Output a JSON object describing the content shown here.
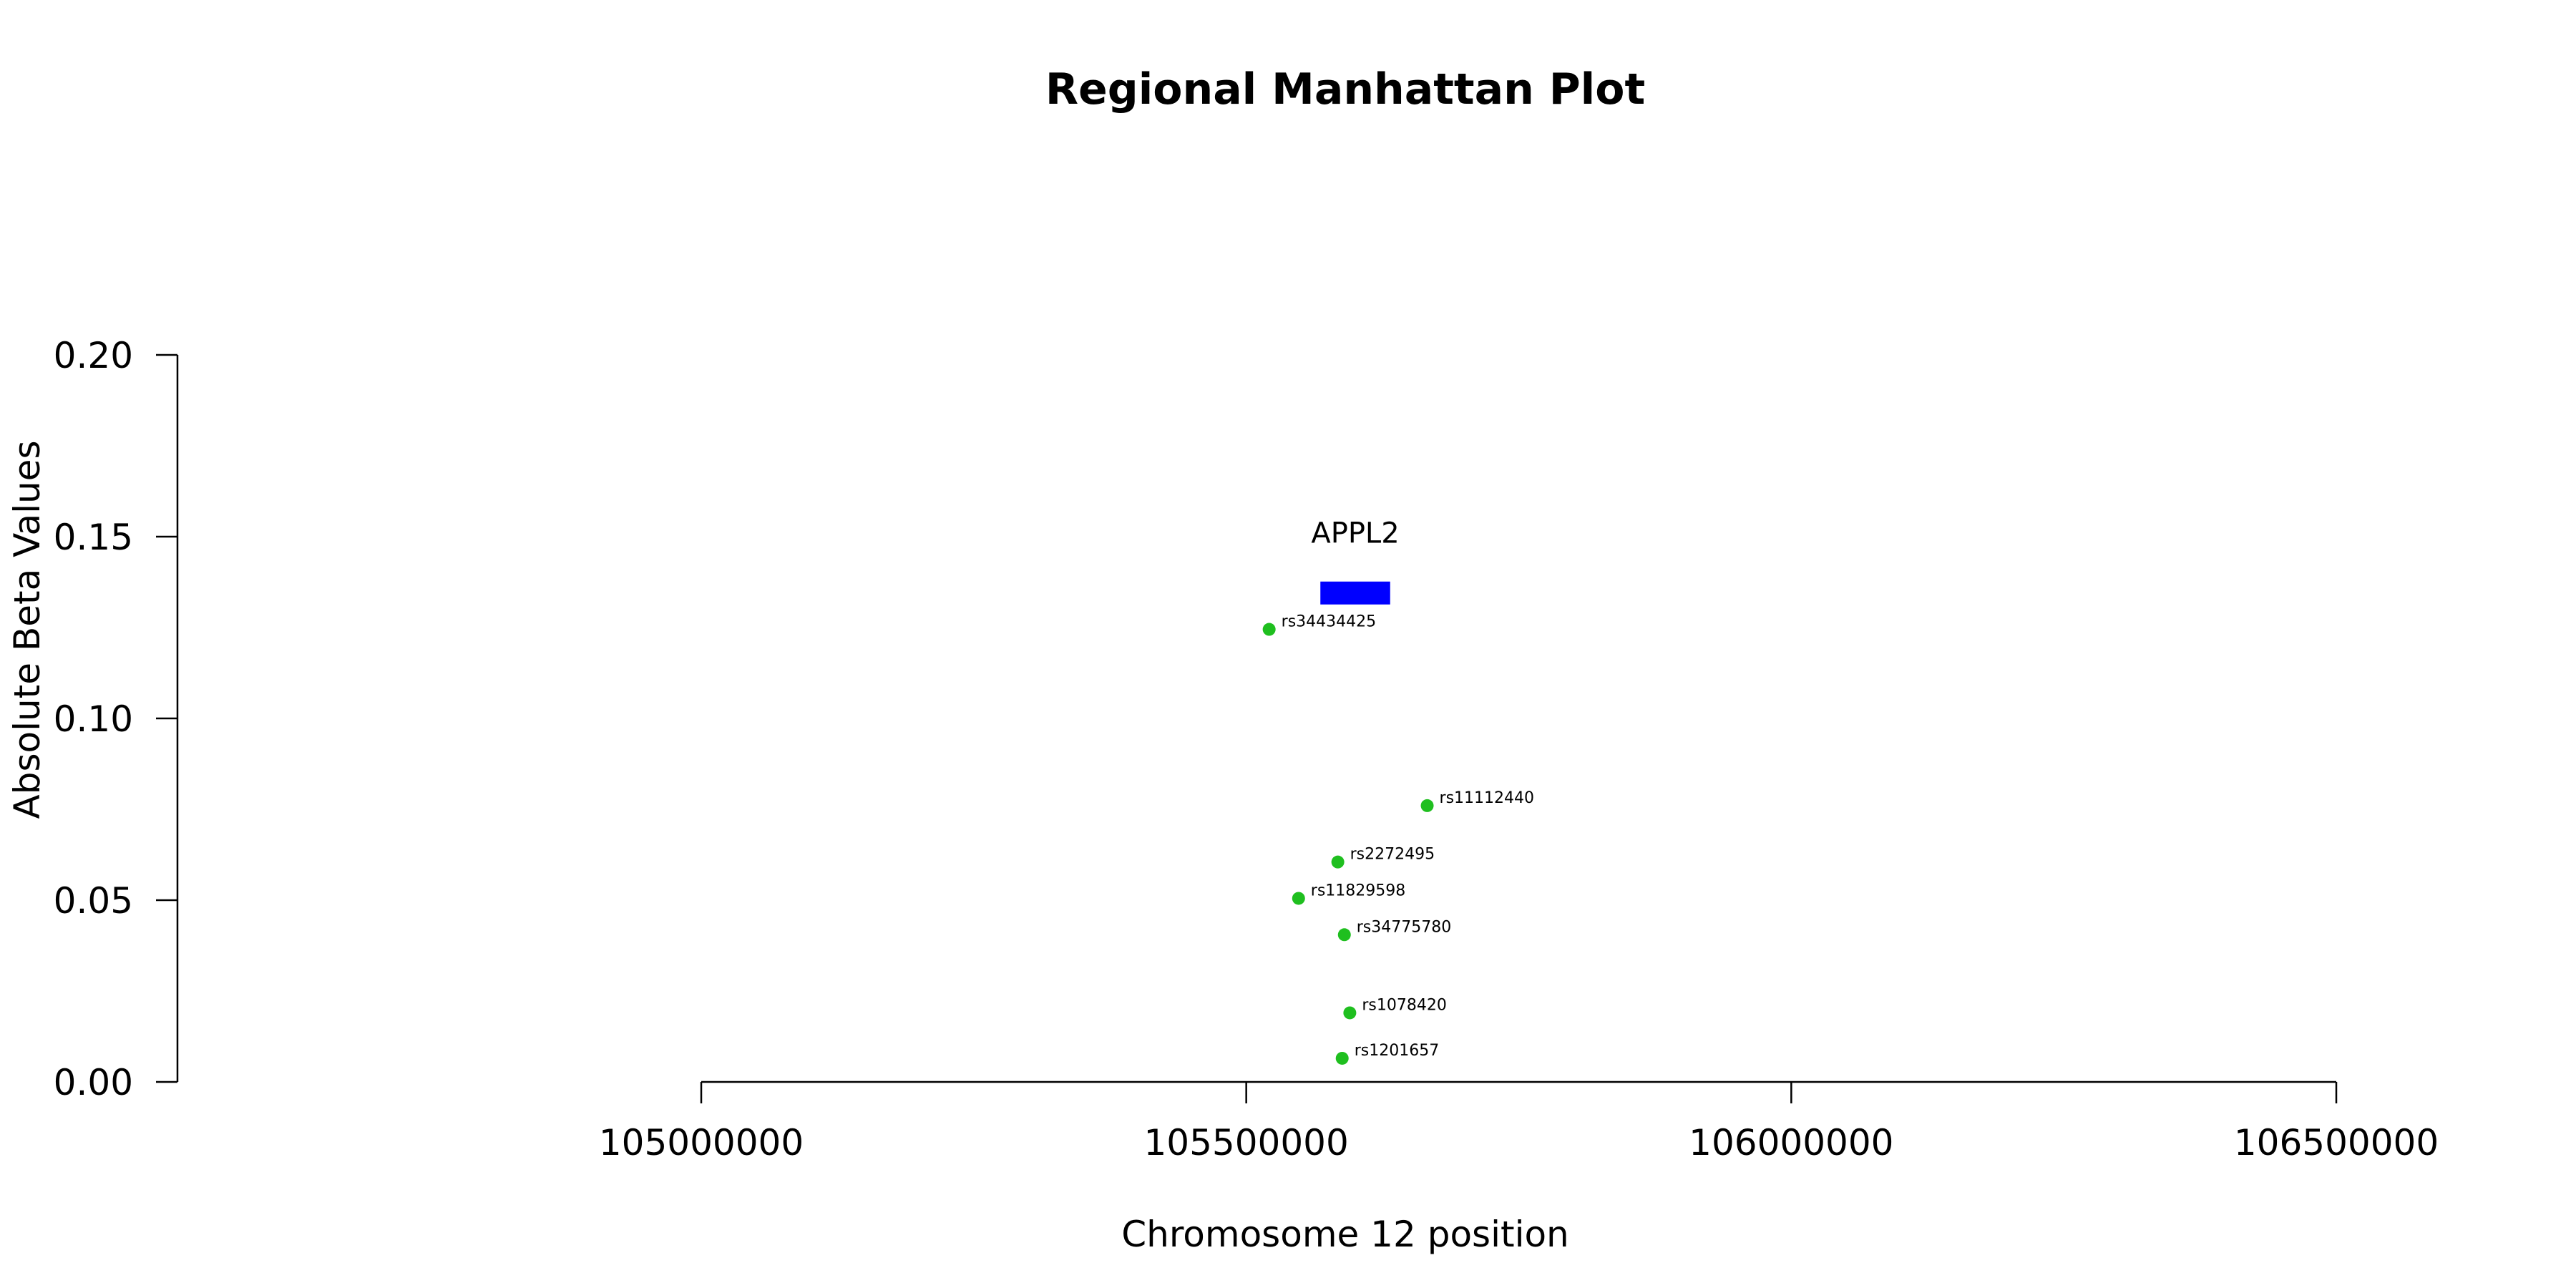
{
  "chart_data": {
    "type": "scatter",
    "title": "Regional Manhattan Plot",
    "xlabel": "Chromosome 12 position",
    "ylabel": "Absolute Beta Values",
    "xlim": [
      105000000,
      106500000
    ],
    "ylim": [
      0,
      0.2
    ],
    "x_ticks": [
      "105000000",
      "105500000",
      "106000000",
      "106500000"
    ],
    "y_ticks": [
      "0.00",
      "0.05",
      "0.10",
      "0.15",
      "0.20"
    ],
    "point_color": "#1fbf1f",
    "points": [
      {
        "label": "rs34434425",
        "x": 105521000,
        "y": 0.1245
      },
      {
        "label": "rs11112440",
        "x": 105666000,
        "y": 0.076
      },
      {
        "label": "rs2272495",
        "x": 105584000,
        "y": 0.0605
      },
      {
        "label": "rs11829598",
        "x": 105548000,
        "y": 0.0505
      },
      {
        "label": "rs34775780",
        "x": 105590000,
        "y": 0.0405
      },
      {
        "label": "rs1078420",
        "x": 105595000,
        "y": 0.019
      },
      {
        "label": "rs1201657",
        "x": 105588000,
        "y": 0.0065
      }
    ],
    "genes": [
      {
        "name": "APPL2",
        "start": 105568000,
        "end": 105632000,
        "y": 0.1345,
        "color": "#0000ff"
      }
    ]
  }
}
